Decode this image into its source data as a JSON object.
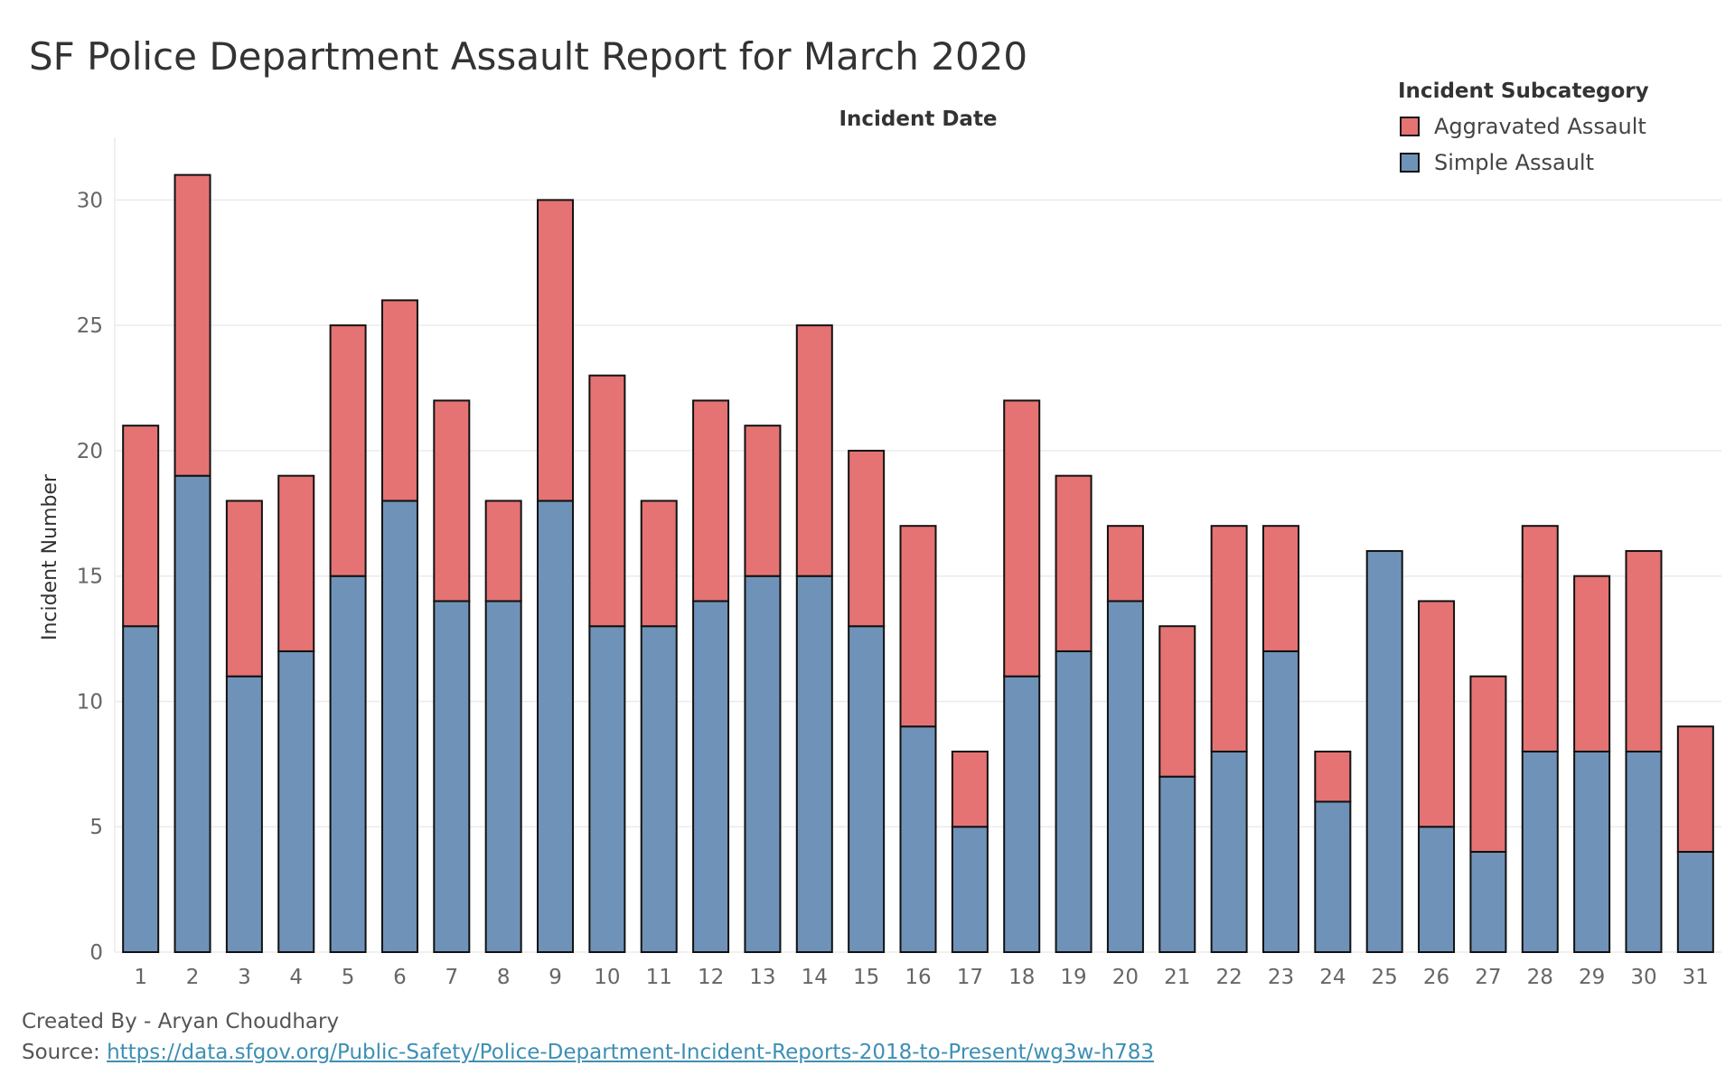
{
  "title": "SF Police Department Assault Report for March 2020",
  "legend": {
    "title": "Incident Subcategory",
    "items": [
      {
        "label": "Aggravated Assault",
        "color": "#e57373"
      },
      {
        "label": "Simple Assault",
        "color": "#6f93b8"
      }
    ]
  },
  "footer": {
    "created_by": "Created By - Aryan Choudhary",
    "source_prefix": "Source: ",
    "source_link": "https://data.sfgov.org/Public-Safety/Police-Department-Incident-Reports-2018-to-Present/wg3w-h783"
  },
  "chart_data": {
    "type": "bar",
    "stacked": true,
    "title": "SF Police Department Assault Report for March 2020",
    "xlabel": "Incident Date",
    "ylabel": "Incident Number",
    "ylim": [
      0,
      32.5
    ],
    "yticks": [
      0,
      5,
      10,
      15,
      20,
      25,
      30
    ],
    "grid": true,
    "legend_position": "top-right",
    "categories": [
      "1",
      "2",
      "3",
      "4",
      "5",
      "6",
      "7",
      "8",
      "9",
      "10",
      "11",
      "12",
      "13",
      "14",
      "15",
      "16",
      "17",
      "18",
      "19",
      "20",
      "21",
      "22",
      "23",
      "24",
      "25",
      "26",
      "27",
      "28",
      "29",
      "30",
      "31"
    ],
    "series": [
      {
        "name": "Simple Assault",
        "color": "#6f93b8",
        "values": [
          13,
          19,
          11,
          12,
          15,
          18,
          14,
          14,
          18,
          13,
          13,
          14,
          15,
          15,
          13,
          9,
          5,
          11,
          12,
          14,
          7,
          8,
          12,
          6,
          16,
          5,
          4,
          8,
          8,
          8,
          4
        ]
      },
      {
        "name": "Aggravated Assault",
        "color": "#e57373",
        "values": [
          8,
          12,
          7,
          7,
          10,
          8,
          8,
          4,
          12,
          10,
          5,
          8,
          6,
          10,
          7,
          8,
          3,
          11,
          7,
          3,
          6,
          9,
          5,
          2,
          0,
          9,
          7,
          9,
          7,
          8,
          5
        ]
      }
    ]
  }
}
